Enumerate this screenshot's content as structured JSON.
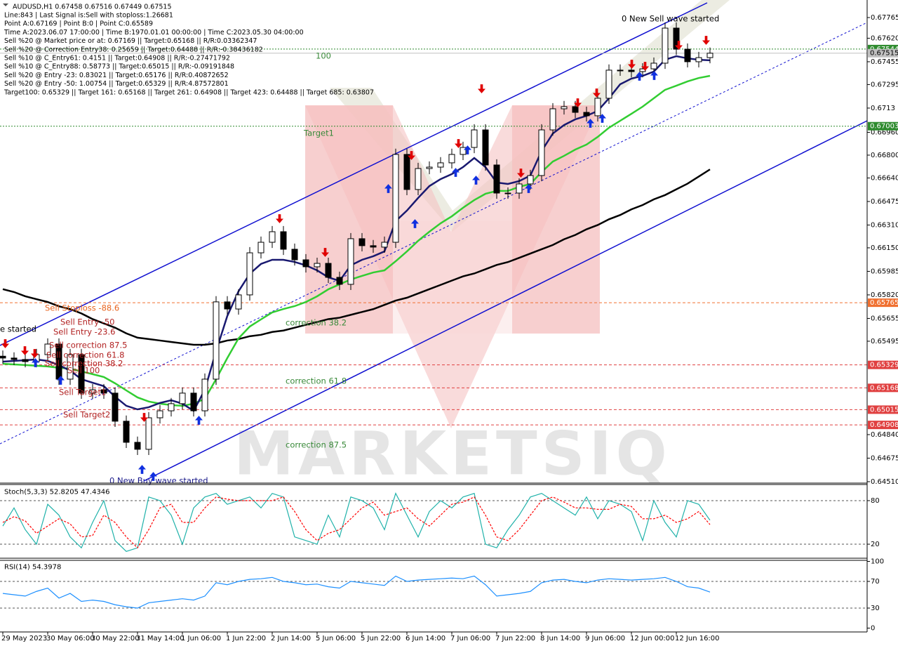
{
  "header": {
    "title": "AUDUSD,H1  0.67458 0.67516 0.67449 0.67515",
    "info": [
      "Line:843 | Last Signal is:Sell with stoploss:1.26681",
      "Point A:0.67169 | Point B:0 | Point C:0.65589",
      "Time A:2023.06.07 17:00:00 | Time B:1970.01.01 00:00:00 | Time C:2023.05.30 04:00:00",
      "Sell %20 @ Market price or at: 0.67169 || Target:0.65168 || R/R:0.03362347",
      "Sell %20 @ Correction Entry38: 0.25659 || Target:0.64488 || R/R:-0.38436182",
      "Sell %10 @ C_Entry61: 0.4151 || Target:0.64908 || R/R:-0.27471792",
      "Sell %10 @ C_Entry88: 0.58773 || Target:0.65015 || R/R:-0.09191848",
      "Sell %20 @ Entry -23: 0.83021 || Target:0.65176 || R/R:0.40872652",
      "Sell %20 @ Entry -50: 1.00754 || Target:0.65329 || R/R:4.87572801",
      "Target100: 0.65329 || Target 161: 0.65168 || Target 261: 0.64908 || Target 423: 0.64488 || Target 685: 0.63807"
    ]
  },
  "chart_data": [
    {
      "type": "candlestick",
      "categories": [
        "29 May 2023",
        null,
        null,
        null,
        "30 May 06:00",
        null,
        null,
        null,
        "30 May 22:00",
        null,
        null,
        null,
        "31 May 14:00",
        null,
        null,
        null,
        "1 Jun 06:00",
        null,
        null,
        null,
        "1 Jun 22:00",
        null,
        null,
        null,
        "2 Jun 14:00",
        null,
        null,
        null,
        "5 Jun 06:00",
        null,
        null,
        null,
        "5 Jun 22:00",
        null,
        null,
        null,
        "6 Jun 14:00",
        null,
        null,
        null,
        "7 Jun 06:00",
        null,
        null,
        null,
        "7 Jun 22:00",
        null,
        null,
        null,
        "8 Jun 14:00",
        null,
        null,
        null,
        "9 Jun 06:00",
        null,
        null,
        null,
        "12 Jun 00:00",
        null,
        null,
        null,
        "12 Jun 16:00",
        null,
        null,
        null
      ],
      "open": [
        0.6539,
        0.65377,
        0.65367,
        0.65352,
        0.65401,
        0.65475,
        0.65229,
        0.65401,
        0.65131,
        0.65155,
        0.65131,
        0.64934,
        0.64786,
        0.64737,
        0.64958,
        0.65007,
        0.65057,
        0.65131,
        0.65007,
        0.65229,
        0.65771,
        0.65721,
        0.6582,
        0.66115,
        0.66189,
        0.66263,
        0.6614,
        0.66066,
        0.66017,
        0.66041,
        0.65943,
        0.65894,
        0.66214,
        0.66165,
        0.66155,
        0.66189,
        0.66805,
        0.66559,
        0.66706,
        0.66716,
        0.66746,
        0.66805,
        0.66854,
        0.66977,
        0.66731,
        0.66534,
        0.66534,
        0.66598,
        0.66657,
        0.66977,
        0.67125,
        0.6714,
        0.671,
        0.67076,
        0.67199,
        0.67396,
        0.67396,
        0.67386,
        0.67405,
        0.67445,
        0.67691,
        0.67543,
        0.67455,
        0.67484
      ],
      "high": [
        0.6543,
        0.65417,
        0.65407,
        0.65441,
        0.65515,
        0.65515,
        0.65441,
        0.65441,
        0.65195,
        0.65195,
        0.65171,
        0.64974,
        0.64826,
        0.64998,
        0.65047,
        0.65097,
        0.65171,
        0.65171,
        0.65269,
        0.65811,
        0.65811,
        0.6586,
        0.66155,
        0.66229,
        0.66303,
        0.66303,
        0.6618,
        0.66106,
        0.66081,
        0.66081,
        0.65983,
        0.66254,
        0.66254,
        0.66205,
        0.66229,
        0.66845,
        0.66845,
        0.66746,
        0.66756,
        0.66786,
        0.66845,
        0.66894,
        0.67017,
        0.67017,
        0.66771,
        0.66574,
        0.66638,
        0.66697,
        0.67017,
        0.67165,
        0.6718,
        0.6718,
        0.6714,
        0.67239,
        0.67436,
        0.67436,
        0.67436,
        0.67445,
        0.67485,
        0.67731,
        0.67731,
        0.67583,
        0.67524,
        0.67555
      ],
      "low": [
        0.65337,
        0.65327,
        0.65312,
        0.65312,
        0.65361,
        0.65189,
        0.65189,
        0.65091,
        0.65091,
        0.65091,
        0.64894,
        0.64746,
        0.64697,
        0.64697,
        0.64918,
        0.64967,
        0.65017,
        0.64967,
        0.64967,
        0.65189,
        0.65681,
        0.65681,
        0.6578,
        0.66075,
        0.66149,
        0.661,
        0.66026,
        0.65977,
        0.65977,
        0.65903,
        0.65854,
        0.65854,
        0.66125,
        0.66115,
        0.66115,
        0.66149,
        0.66519,
        0.66519,
        0.66666,
        0.66676,
        0.66706,
        0.66765,
        0.66814,
        0.66691,
        0.66494,
        0.66494,
        0.66494,
        0.66558,
        0.66617,
        0.66937,
        0.67085,
        0.6706,
        0.67036,
        0.67036,
        0.67159,
        0.67356,
        0.67346,
        0.67346,
        0.67365,
        0.67405,
        0.67503,
        0.67415,
        0.67415,
        0.67444
      ],
      "close": [
        0.65377,
        0.65367,
        0.65352,
        0.65401,
        0.65475,
        0.65229,
        0.65401,
        0.65131,
        0.65155,
        0.65131,
        0.64934,
        0.64786,
        0.64737,
        0.64958,
        0.65007,
        0.65057,
        0.65131,
        0.65007,
        0.65229,
        0.65771,
        0.65721,
        0.6582,
        0.66115,
        0.66189,
        0.66263,
        0.6614,
        0.66066,
        0.66017,
        0.66041,
        0.65943,
        0.65894,
        0.66214,
        0.66165,
        0.66155,
        0.66189,
        0.66805,
        0.66559,
        0.66706,
        0.66716,
        0.66746,
        0.66805,
        0.66854,
        0.66977,
        0.66731,
        0.66534,
        0.66534,
        0.66598,
        0.66657,
        0.66977,
        0.67125,
        0.6714,
        0.671,
        0.67076,
        0.67199,
        0.67396,
        0.67396,
        0.67386,
        0.67405,
        0.67445,
        0.67691,
        0.67543,
        0.67455,
        0.67484,
        0.67515
      ],
      "candle_colors": {
        "up": "#ffffff",
        "down": "#000000",
        "outline": "#000000"
      },
      "lines": [
        {
          "color": "#000000",
          "values": [
            0.6586,
            0.6584,
            0.6581,
            0.6579,
            0.6577,
            0.6574,
            0.6572,
            0.6569,
            0.6565,
            0.6562,
            0.6559,
            0.6555,
            0.6552,
            0.6551,
            0.655,
            0.6549,
            0.6548,
            0.6547,
            0.6547,
            0.6548,
            0.655,
            0.6551,
            0.6553,
            0.6554,
            0.6556,
            0.6557,
            0.6559,
            0.6561,
            0.6563,
            0.6565,
            0.6566,
            0.6568,
            0.657,
            0.6572,
            0.6575,
            0.6578,
            0.658,
            0.6583,
            0.6586,
            0.6589,
            0.6592,
            0.6595,
            0.6597,
            0.66,
            0.6603,
            0.6605,
            0.6608,
            0.6611,
            0.6614,
            0.6617,
            0.6621,
            0.6624,
            0.6628,
            0.6631,
            0.6635,
            0.6638,
            0.6642,
            0.6645,
            0.6649,
            0.6652,
            0.6656,
            0.666,
            0.6665,
            0.667
          ]
        },
        {
          "color": "#32cd32",
          "values": [
            0.65337,
            0.65332,
            0.65328,
            0.65323,
            0.65318,
            0.65308,
            0.65303,
            0.65283,
            0.65264,
            0.65244,
            0.652,
            0.6515,
            0.65101,
            0.65072,
            0.65057,
            0.65047,
            0.65042,
            0.65057,
            0.65091,
            0.65229,
            0.65377,
            0.65515,
            0.65598,
            0.65648,
            0.65697,
            0.65721,
            0.65741,
            0.6577,
            0.6581,
            0.65859,
            0.65894,
            0.65928,
            0.65953,
            0.65977,
            0.65992,
            0.66056,
            0.66125,
            0.66199,
            0.66263,
            0.66322,
            0.66371,
            0.66431,
            0.66485,
            0.66529,
            0.66549,
            0.66549,
            0.66578,
            0.66598,
            0.66682,
            0.66755,
            0.66795,
            0.66839,
            0.66874,
            0.66928,
            0.66992,
            0.67041,
            0.6709,
            0.6714,
            0.67199,
            0.67258,
            0.67287,
            0.67317,
            0.67341,
            0.67356
          ]
        },
        {
          "color": "#191970",
          "values": [
            0.65352,
            0.65357,
            0.65362,
            0.65367,
            0.65357,
            0.65328,
            0.65288,
            0.65229,
            0.65204,
            0.6518,
            0.65106,
            0.65042,
            0.65017,
            0.65032,
            0.65062,
            0.65081,
            0.65057,
            0.65007,
            0.65155,
            0.65426,
            0.65672,
            0.65845,
            0.65968,
            0.66037,
            0.66066,
            0.66066,
            0.66051,
            0.66027,
            0.65992,
            0.65943,
            0.65918,
            0.66027,
            0.66066,
            0.66091,
            0.66125,
            0.66337,
            0.66411,
            0.665,
            0.66583,
            0.66632,
            0.66667,
            0.66716,
            0.6678,
            0.66716,
            0.66608,
            0.66598,
            0.66618,
            0.66657,
            0.66829,
            0.66952,
            0.67011,
            0.67051,
            0.67076,
            0.6711,
            0.67199,
            0.67297,
            0.67337,
            0.67356,
            0.67386,
            0.67469,
            0.67494,
            0.67479,
            0.67469,
            0.67465
          ]
        }
      ],
      "ylim": [
        0.645,
        0.67888
      ],
      "yticks": [
        0.67765,
        {
          "value": 0.6762,
          "label": "0.67620"
        },
        0.67455,
        0.67295,
        0.6713,
        {
          "value": 0.6696,
          "label": "0.66960"
        },
        {
          "value": 0.668,
          "label": "0.66800"
        },
        {
          "value": 0.6664,
          "label": "0.66640"
        },
        0.66475,
        {
          "value": 0.6631,
          "label": "0.66310"
        },
        {
          "value": 0.6615,
          "label": "0.66150"
        },
        0.65985,
        {
          "value": 0.6582,
          "label": "0.65820"
        },
        0.65655,
        0.65495,
        {
          "value": 0.6484,
          "label": "0.64840"
        },
        0.64675,
        {
          "value": 0.6451,
          "label": "0.64510"
        }
      ],
      "levels": [
        {
          "value": 0.67544,
          "color": "#2e8b2e",
          "style": "dotted"
        },
        {
          "value": 0.67515,
          "color": "#c0c0c0",
          "style": "solid"
        },
        {
          "value": 0.67003,
          "color": "#2e8b2e",
          "style": "dotted"
        },
        {
          "value": 0.65765,
          "color": "#f07030",
          "style": "dashed"
        },
        {
          "value": 0.65329,
          "color": "#e04040",
          "style": "dashed"
        },
        {
          "value": 0.65168,
          "color": "#e04040",
          "style": "dashed"
        },
        {
          "value": 0.65015,
          "color": "#e04040",
          "style": "dashed"
        },
        {
          "value": 0.64908,
          "color": "#e04040",
          "style": "dashed"
        }
      ],
      "annotations": [
        {
          "text": "0 New Sell wave started",
          "color": "#000000"
        },
        {
          "text": "100",
          "color": "#3a8a3a"
        },
        {
          "text": "Target1",
          "color": "#3a8a3a"
        },
        {
          "text": "correction 38.2",
          "color": "#3a8a3a"
        },
        {
          "text": "correction 61.8",
          "color": "#3a8a3a"
        },
        {
          "text": "correction 87.5",
          "color": "#3a8a3a"
        },
        {
          "text": "0 New Buy wave started",
          "color": "#1a1a8a"
        },
        {
          "text": "Sell Stoploss -88.6",
          "color": "#e8641e"
        },
        {
          "text": "Sell Entry -50",
          "color": "#b22222"
        },
        {
          "text": "Sell Entry -23.6",
          "color": "#b22222"
        },
        {
          "text": "Sell correction 87.5",
          "color": "#b22222"
        },
        {
          "text": "Sell correction 61.8",
          "color": "#b22222"
        },
        {
          "text": "Sell correction 38.2",
          "color": "#b22222"
        },
        {
          "text": "Sell 100",
          "color": "#b22222"
        },
        {
          "text": "Sell Target1",
          "color": "#b22222"
        },
        {
          "text": "Sell Target2",
          "color": "#b22222"
        },
        {
          "text": "e started",
          "color": "#000000"
        }
      ],
      "watermark": "MARKETSIQ"
    },
    {
      "type": "line",
      "title": "Stoch(5,3,3) 52.8205 47.4346",
      "series": [
        {
          "color": "#20b2aa",
          "dash": false,
          "values": [
            45,
            70,
            40,
            20,
            75,
            60,
            30,
            15,
            50,
            80,
            25,
            10,
            15,
            85,
            80,
            60,
            20,
            70,
            85,
            90,
            75,
            80,
            85,
            70,
            90,
            85,
            30,
            25,
            20,
            60,
            30,
            85,
            80,
            70,
            40,
            90,
            60,
            30,
            65,
            80,
            70,
            85,
            90,
            20,
            15,
            40,
            60,
            85,
            90,
            80,
            70,
            60,
            85,
            55,
            80,
            75,
            65,
            25,
            80,
            50,
            30,
            80,
            75,
            53
          ]
        },
        {
          "color": "#ff0000",
          "dash": true,
          "values": [
            50,
            58,
            52,
            35,
            45,
            55,
            48,
            30,
            32,
            60,
            50,
            30,
            15,
            40,
            70,
            75,
            50,
            50,
            70,
            85,
            82,
            80,
            80,
            80,
            80,
            85,
            65,
            40,
            25,
            35,
            40,
            55,
            70,
            78,
            60,
            65,
            70,
            55,
            45,
            60,
            75,
            78,
            85,
            60,
            30,
            25,
            40,
            60,
            80,
            85,
            78,
            70,
            70,
            68,
            68,
            75,
            72,
            55,
            55,
            60,
            50,
            55,
            65,
            47
          ]
        }
      ],
      "ylim": [
        0,
        100
      ],
      "yticks": [
        20,
        80
      ],
      "levels": [
        20,
        80
      ]
    },
    {
      "type": "line",
      "title": "RSI(14) 54.3978",
      "series": [
        {
          "color": "#1e90ff",
          "dash": false,
          "values": [
            52,
            50,
            48,
            55,
            60,
            45,
            52,
            40,
            42,
            40,
            35,
            32,
            30,
            38,
            40,
            42,
            44,
            42,
            48,
            68,
            65,
            70,
            73,
            74,
            76,
            70,
            68,
            65,
            66,
            62,
            60,
            70,
            68,
            66,
            64,
            78,
            70,
            72,
            73,
            74,
            75,
            74,
            78,
            65,
            48,
            50,
            52,
            55,
            68,
            72,
            73,
            70,
            68,
            72,
            74,
            73,
            72,
            73,
            74,
            76,
            70,
            62,
            60,
            54
          ]
        }
      ],
      "ylim": [
        0,
        100
      ],
      "yticks": [
        0,
        30,
        70,
        100
      ],
      "levels": [
        30,
        70
      ]
    }
  ]
}
